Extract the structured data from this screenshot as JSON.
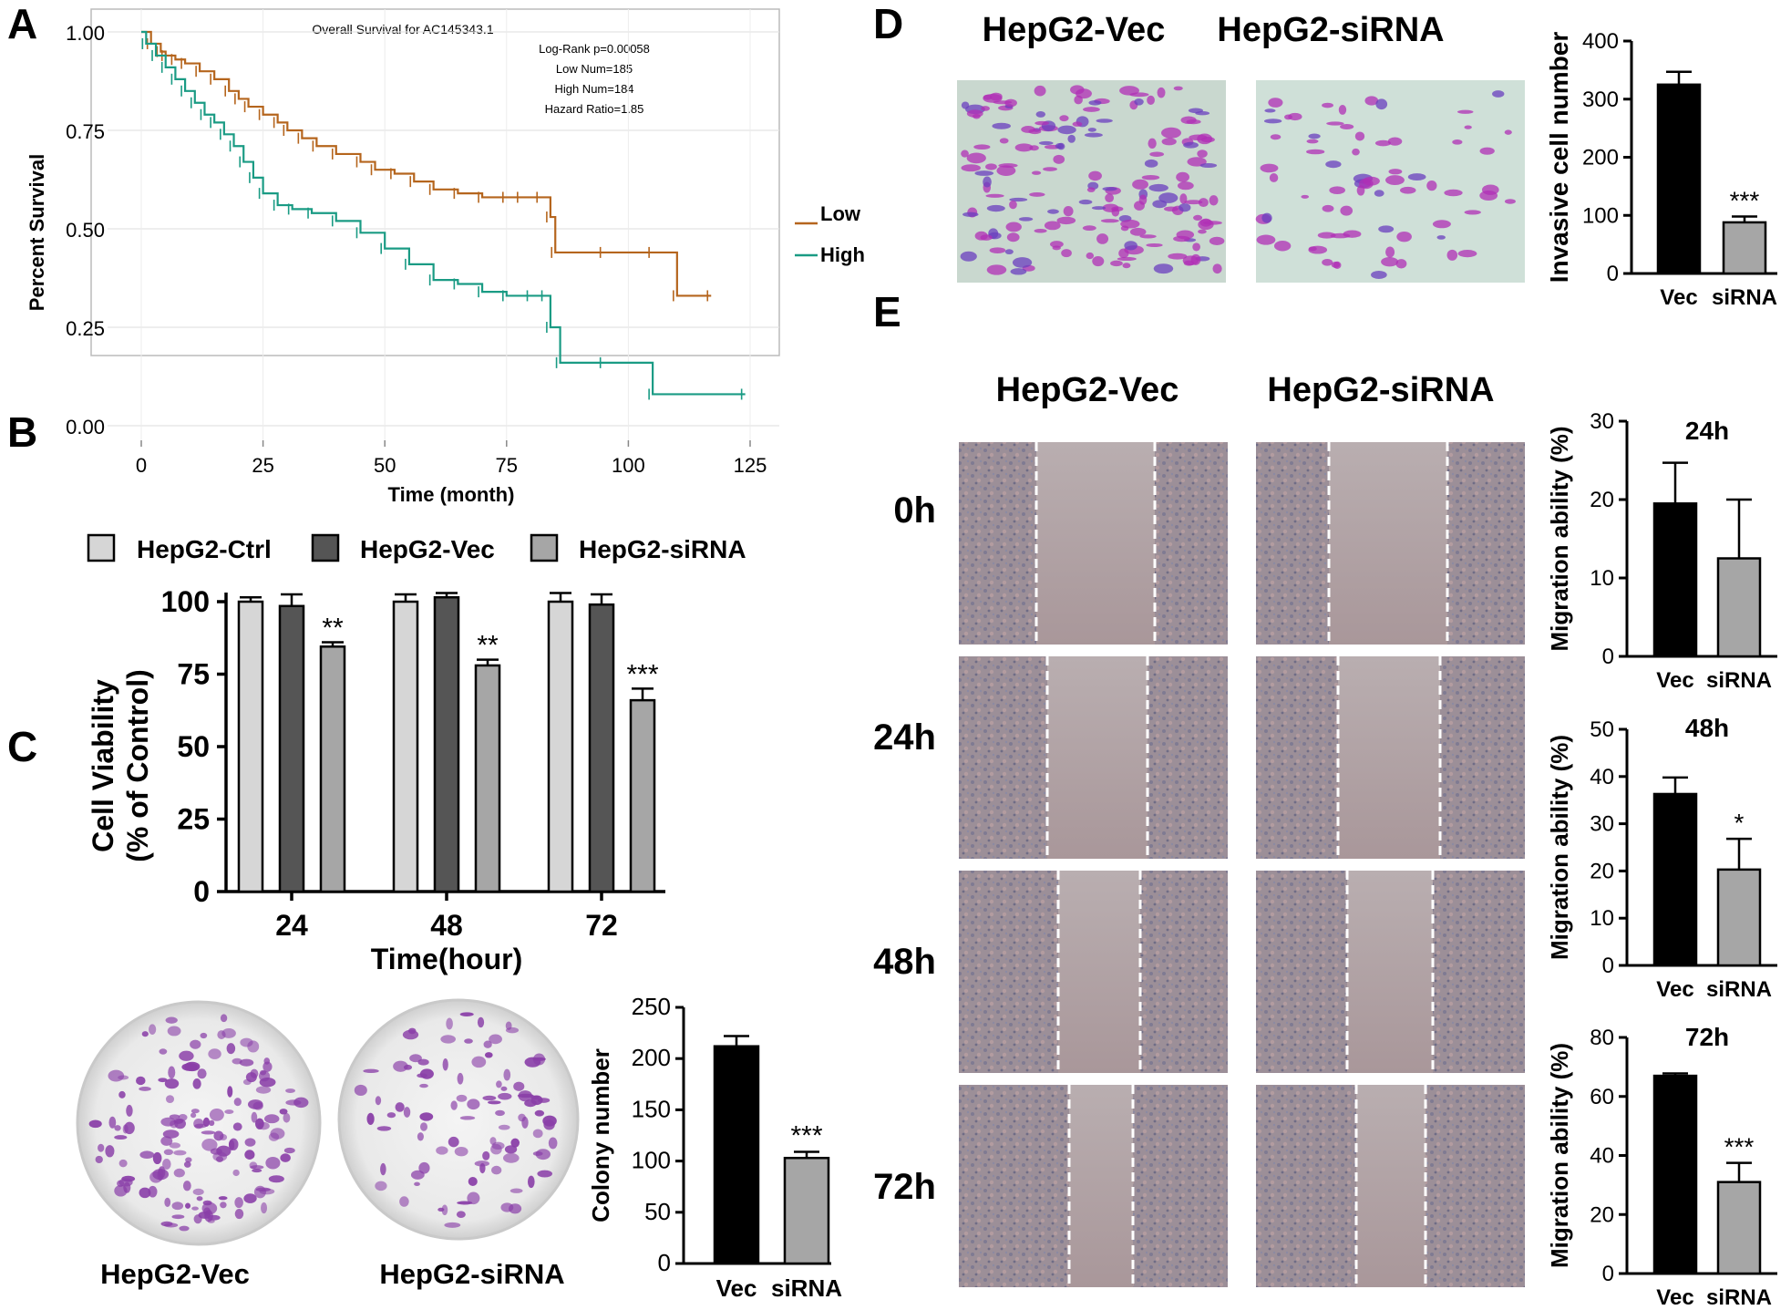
{
  "colors": {
    "low": "#b5651d",
    "high": "#1a9b84",
    "black": "#000000",
    "dark": "#555555",
    "light": "#d6d6d6",
    "grey": "#a6a6a6",
    "stain": "#8a3fa8"
  },
  "panels": {
    "A": "A",
    "B": "B",
    "C": "C",
    "D": "D",
    "E": "E"
  },
  "chart_data": [
    {
      "id": "A",
      "type": "line",
      "title": "Overall Survival for AC145343.1",
      "xlabel": "Time (month)",
      "ylabel": "Percent Survival",
      "xlim": [
        0,
        125
      ],
      "ylim": [
        0,
        1
      ],
      "xticks": [
        "0",
        "25",
        "50",
        "75",
        "100",
        "125"
      ],
      "yticks": [
        "0.00",
        "0.25",
        "0.50",
        "0.75",
        "1.00"
      ],
      "annotations": [
        "Log-Rank p=0.00058",
        "Low Num=185",
        "High Num=184",
        "Hazard Ratio=1.85"
      ],
      "legend_position": "right",
      "series": [
        {
          "name": "Low",
          "x": [
            0,
            2,
            4,
            5,
            7,
            9,
            12,
            15,
            18,
            20,
            22,
            25,
            28,
            30,
            33,
            36,
            40,
            45,
            48,
            52,
            56,
            60,
            65,
            70,
            75,
            78,
            82,
            84,
            85,
            95,
            105,
            110,
            117
          ],
          "y": [
            1.0,
            0.97,
            0.95,
            0.94,
            0.93,
            0.92,
            0.9,
            0.88,
            0.85,
            0.83,
            0.81,
            0.79,
            0.77,
            0.75,
            0.73,
            0.71,
            0.69,
            0.67,
            0.65,
            0.64,
            0.62,
            0.6,
            0.59,
            0.58,
            0.58,
            0.58,
            0.58,
            0.53,
            0.44,
            0.44,
            0.44,
            0.33,
            0.33
          ]
        },
        {
          "name": "High",
          "x": [
            0,
            1,
            3,
            5,
            7,
            9,
            11,
            13,
            15,
            17,
            19,
            21,
            23,
            25,
            28,
            31,
            35,
            40,
            45,
            50,
            55,
            60,
            65,
            70,
            75,
            80,
            83,
            84,
            86,
            95,
            105,
            124
          ],
          "y": [
            1.0,
            0.97,
            0.94,
            0.91,
            0.88,
            0.85,
            0.82,
            0.79,
            0.77,
            0.74,
            0.71,
            0.67,
            0.63,
            0.59,
            0.56,
            0.55,
            0.54,
            0.52,
            0.49,
            0.45,
            0.41,
            0.37,
            0.36,
            0.34,
            0.33,
            0.33,
            0.33,
            0.25,
            0.16,
            0.16,
            0.08,
            0.08
          ]
        }
      ]
    },
    {
      "id": "B",
      "type": "bar",
      "xlabel": "Time(hour)",
      "ylabel": "Cell Viability",
      "ylabel2": "(% of Control)",
      "categories": [
        "24",
        "48",
        "72"
      ],
      "ylim": [
        0,
        100
      ],
      "yticks": [
        "0",
        "25",
        "50",
        "75",
        "100"
      ],
      "series": [
        {
          "name": "HepG2-Ctrl",
          "values": [
            100,
            100,
            100
          ],
          "err": [
            1.5,
            2.5,
            3
          ]
        },
        {
          "name": "HepG2-Vec",
          "values": [
            98.5,
            101.5,
            99
          ],
          "err": [
            4,
            1.5,
            3.5
          ]
        },
        {
          "name": "HepG2-siRNA",
          "values": [
            84.5,
            78,
            66
          ],
          "err": [
            1.5,
            2,
            4
          ]
        }
      ],
      "significance": [
        "**",
        "**",
        "***"
      ]
    },
    {
      "id": "C",
      "type": "bar",
      "ylabel": "Colony number",
      "categories": [
        "Vec",
        "siRNA"
      ],
      "values": [
        212,
        103
      ],
      "err": [
        10,
        6
      ],
      "ylim": [
        0,
        250
      ],
      "yticks": [
        "0",
        "50",
        "100",
        "150",
        "200",
        "250"
      ],
      "significance": [
        "",
        "***"
      ],
      "image_captions": [
        "HepG2-Vec",
        "HepG2-siRNA"
      ]
    },
    {
      "id": "D",
      "type": "bar",
      "ylabel": "Invasive cell number",
      "categories": [
        "Vec",
        "siRNA"
      ],
      "values": [
        325,
        88
      ],
      "err": [
        22,
        10
      ],
      "ylim": [
        0,
        400
      ],
      "yticks": [
        "0",
        "100",
        "200",
        "300",
        "400"
      ],
      "significance": [
        "",
        "***"
      ],
      "image_captions": [
        "HepG2-Vec",
        "HepG2-siRNA"
      ]
    },
    {
      "id": "E24",
      "type": "bar",
      "title": "24h",
      "ylabel": "Migration ability (%)",
      "categories": [
        "Vec",
        "siRNA"
      ],
      "values": [
        19.5,
        12.5
      ],
      "err": [
        5.2,
        7.5
      ],
      "ylim": [
        0,
        30
      ],
      "yticks": [
        "0",
        "10",
        "20",
        "30"
      ],
      "significance": [
        "",
        ""
      ]
    },
    {
      "id": "E48",
      "type": "bar",
      "title": "48h",
      "ylabel": "Migration ability (%)",
      "categories": [
        "Vec",
        "siRNA"
      ],
      "values": [
        36.3,
        20.3
      ],
      "err": [
        3.5,
        6.5
      ],
      "ylim": [
        0,
        50
      ],
      "yticks": [
        "0",
        "10",
        "20",
        "30",
        "40",
        "50"
      ],
      "significance": [
        "",
        "*"
      ]
    },
    {
      "id": "E72",
      "type": "bar",
      "title": "72h",
      "ylabel": "Migration ability (%)",
      "categories": [
        "Vec",
        "siRNA"
      ],
      "values": [
        67,
        31
      ],
      "err": [
        0.8,
        6.5
      ],
      "ylim": [
        0,
        80
      ],
      "yticks": [
        "0",
        "20",
        "40",
        "60",
        "80"
      ],
      "significance": [
        "",
        "***"
      ]
    }
  ],
  "panel_e": {
    "columns": [
      "HepG2-Vec",
      "HepG2-siRNA"
    ],
    "rows": [
      "0h",
      "24h",
      "48h",
      "72h"
    ]
  }
}
